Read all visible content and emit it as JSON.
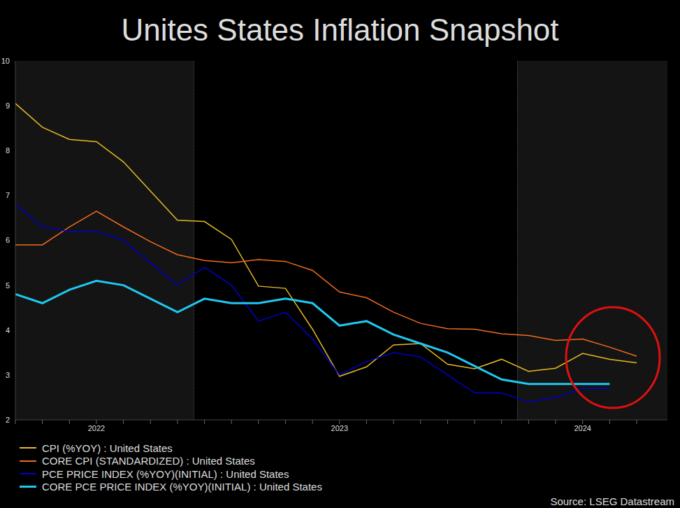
{
  "chart_data": {
    "type": "line",
    "title": "Unites States Inflation Snapshot",
    "annotation": "Source: LSEG Datastream",
    "categories": [
      null,
      null,
      null,
      "2022",
      null,
      null,
      null,
      null,
      null,
      null,
      null,
      null,
      "2023",
      null,
      null,
      null,
      null,
      null,
      null,
      null,
      null,
      "2024",
      null,
      null
    ],
    "series": [
      {
        "name": "CPI (%YOY) : United States",
        "color": "#e8b923",
        "values": [
          9.05,
          8.52,
          8.25,
          8.2,
          7.75,
          7.1,
          6.45,
          6.42,
          6.02,
          4.98,
          4.93,
          4.02,
          2.97,
          3.18,
          3.67,
          3.7,
          3.24,
          3.14,
          3.35,
          3.08,
          3.15,
          3.48,
          3.35,
          3.27
        ]
      },
      {
        "name": "CORE CPI (STANDARDIZED) : United States",
        "color": "#f26b1d",
        "values": [
          5.9,
          5.9,
          6.3,
          6.65,
          6.3,
          5.97,
          5.68,
          5.55,
          5.5,
          5.57,
          5.53,
          5.33,
          4.85,
          4.72,
          4.4,
          4.15,
          4.03,
          4.02,
          3.92,
          3.88,
          3.77,
          3.8,
          3.62,
          3.42
        ]
      },
      {
        "name": "PCE PRICE INDEX (%YOY)(INITIAL) : United States",
        "color": "#0000cc",
        "values": [
          6.8,
          6.3,
          6.2,
          6.2,
          6.0,
          5.5,
          5.0,
          5.4,
          5.0,
          4.2,
          4.4,
          3.8,
          3.0,
          3.3,
          3.5,
          3.4,
          3.0,
          2.6,
          2.6,
          2.4,
          2.5,
          2.7,
          2.7,
          null
        ]
      },
      {
        "name": "CORE PCE PRICE INDEX (%YOY)(INITIAL) : United States",
        "color": "#1ec8f0",
        "values": [
          4.8,
          4.6,
          4.9,
          5.1,
          5.0,
          4.7,
          4.4,
          4.7,
          4.6,
          4.6,
          4.7,
          4.6,
          4.1,
          4.2,
          3.9,
          3.7,
          3.5,
          3.2,
          2.9,
          2.8,
          2.8,
          2.8,
          2.8,
          null
        ]
      }
    ],
    "ylim": [
      2,
      10
    ],
    "yticks": [
      2,
      3,
      4,
      5,
      6,
      7,
      8,
      9,
      10
    ],
    "grid": false,
    "legend": "bottom-left"
  }
}
